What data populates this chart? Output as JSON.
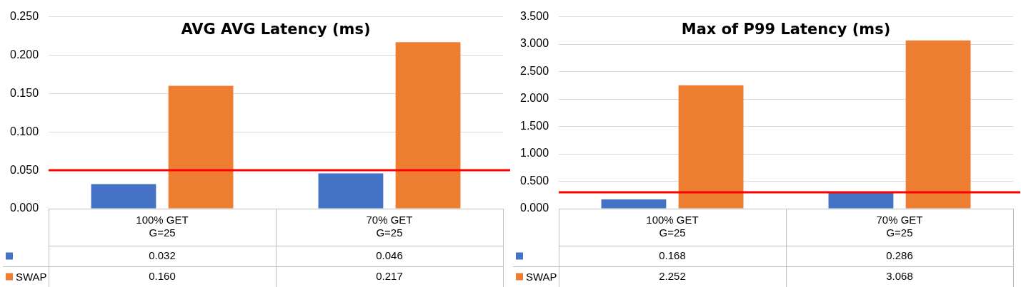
{
  "chart_data": [
    {
      "type": "bar",
      "title": "AVG AVG Latency (ms)",
      "categories": [
        "100% GET G=25",
        "70% GET G=25"
      ],
      "series": [
        {
          "color": "#4472c4",
          "values": [
            0.032,
            0.046
          ],
          "value_labels": [
            "0.032",
            "0.046"
          ]
        },
        {
          "name": "SWAP",
          "color": "#ed7d31",
          "values": [
            0.16,
            0.217
          ],
          "value_labels": [
            "0.160",
            "0.217"
          ]
        }
      ],
      "ylim": [
        0,
        0.25
      ],
      "yticks": [
        {
          "value": 0,
          "label": "0.000"
        },
        {
          "value": 0.05,
          "label": "0.050"
        },
        {
          "value": 0.1,
          "label": "0.100"
        },
        {
          "value": 0.15,
          "label": "0.150"
        },
        {
          "value": 0.2,
          "label": "0.200"
        },
        {
          "value": 0.25,
          "label": "0.250"
        }
      ],
      "grid": "y",
      "legend": "bottom",
      "ref_lines": [
        {
          "axis": "y",
          "value": 0.05,
          "color": "#ff0000",
          "line_style": "solid"
        }
      ]
    },
    {
      "type": "bar",
      "title": "Max of P99 Latency (ms)",
      "categories": [
        "100% GET G=25",
        "70% GET G=25"
      ],
      "series": [
        {
          "color": "#4472c4",
          "values": [
            0.168,
            0.286
          ],
          "value_labels": [
            "0.168",
            "0.286"
          ]
        },
        {
          "name": "SWAP",
          "color": "#ed7d31",
          "values": [
            2.252,
            3.068
          ],
          "value_labels": [
            "2.252",
            "3.068"
          ]
        }
      ],
      "ylim": [
        0,
        3.5
      ],
      "yticks": [
        {
          "value": 0,
          "label": "0.000"
        },
        {
          "value": 0.5,
          "label": "0.500"
        },
        {
          "value": 1,
          "label": "1.000"
        },
        {
          "value": 1.5,
          "label": "1.500"
        },
        {
          "value": 2,
          "label": "2.000"
        },
        {
          "value": 2.5,
          "label": "2.500"
        },
        {
          "value": 3,
          "label": "3.000"
        },
        {
          "value": 3.5,
          "label": "3.500"
        }
      ],
      "grid": "y",
      "legend": "bottom",
      "ref_lines": [
        {
          "axis": "y",
          "value": 0.3,
          "color": "#ff0000",
          "line_style": "solid"
        }
      ]
    }
  ]
}
